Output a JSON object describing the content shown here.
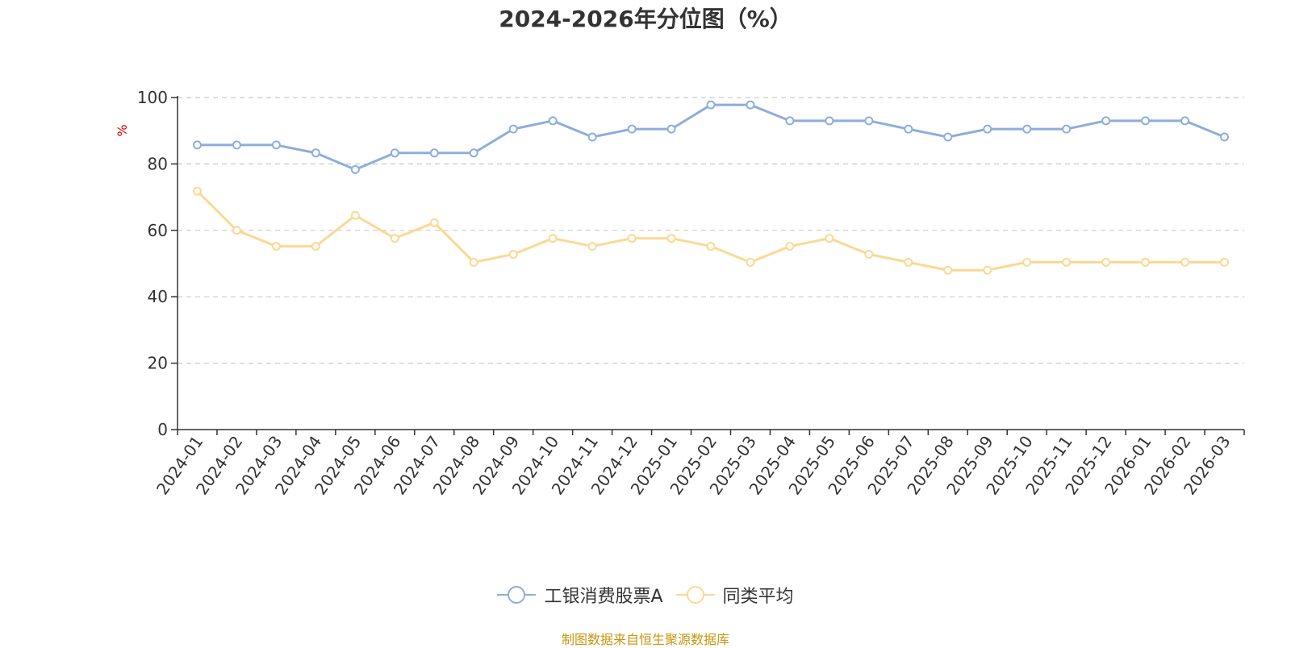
{
  "chart_data": {
    "type": "line",
    "title": "2024-2026年分位图（%）",
    "ylabel": "%",
    "xlabel": "",
    "ylim": [
      0,
      100
    ],
    "yticks": [
      0,
      20,
      40,
      60,
      80,
      100
    ],
    "grid": true,
    "legend_position": "bottom",
    "categories": [
      "2024-01",
      "2024-02",
      "2024-03",
      "2024-04",
      "2024-05",
      "2024-06",
      "2024-07",
      "2024-08",
      "2024-09",
      "2024-10",
      "2024-11",
      "2024-12",
      "2025-01",
      "2025-02",
      "2025-03",
      "2025-04",
      "2025-05",
      "2025-06",
      "2025-07",
      "2025-08",
      "2025-09",
      "2025-10",
      "2025-11",
      "2025-12",
      "2026-01",
      "2026-02",
      "2026-03"
    ],
    "series": [
      {
        "name": "工银消费股票A",
        "color": "#8eaedb",
        "values": [
          85.7,
          85.7,
          85.7,
          83.3,
          78.3,
          83.3,
          83.3,
          83.3,
          90.5,
          93.0,
          88.1,
          90.5,
          90.5,
          97.8,
          97.8,
          93.0,
          93.0,
          93.0,
          90.5,
          88.1,
          90.5,
          90.5,
          90.5,
          93.0,
          93.0,
          93.0,
          88.1
        ]
      },
      {
        "name": "同类平均",
        "color": "#fbd993",
        "values": [
          71.8,
          60.0,
          55.2,
          55.2,
          64.5,
          57.6,
          62.3,
          50.4,
          52.8,
          57.6,
          55.2,
          57.6,
          57.6,
          55.2,
          50.4,
          55.2,
          57.6,
          52.8,
          50.4,
          48.0,
          48.0,
          50.4,
          50.4,
          50.4,
          50.4,
          50.4,
          50.4
        ]
      }
    ]
  },
  "footer": {
    "source": "制图数据来自恒生聚源数据库"
  }
}
